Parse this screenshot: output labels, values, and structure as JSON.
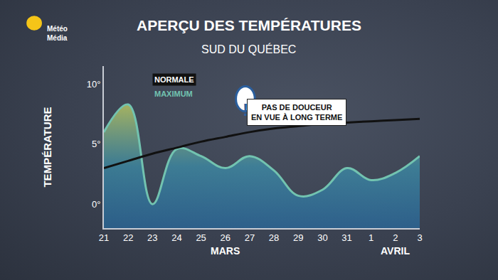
{
  "chart_data": {
    "type": "line",
    "title": "APERÇU DES TEMPÉRATURES",
    "subtitle": "SUD DU QUÉBEC",
    "logo": "Météo\nMédia",
    "y_label": "TEMPÉRATURE",
    "categories": [
      "21",
      "22",
      "23",
      "24",
      "25",
      "26",
      "27",
      "28",
      "29",
      "30",
      "31",
      "1",
      "2",
      "3"
    ],
    "series": [
      {
        "name": "NORMALE",
        "type": "line",
        "color": "#111111",
        "values": [
          3.0,
          3.6,
          4.2,
          4.7,
          5.2,
          5.6,
          6.0,
          6.3,
          6.5,
          6.7,
          6.8,
          6.9,
          7.0,
          7.1
        ]
      },
      {
        "name": "MAXIMUM",
        "type": "area",
        "color": "#72c3b0",
        "values": [
          6.0,
          8.3,
          0.0,
          4.6,
          4.0,
          3.0,
          4.0,
          2.8,
          0.7,
          1.2,
          3.0,
          2.0,
          2.6,
          4.0
        ]
      }
    ],
    "ylim": [
      -2,
      11.5
    ],
    "yticks": [
      {
        "value": 0,
        "label": "0°"
      },
      {
        "value": 5,
        "label": "5°"
      },
      {
        "value": 10,
        "label": "10°"
      }
    ],
    "grid": false,
    "legend": "top left",
    "callout": {
      "icon": "!",
      "text": "PAS DE DOUCEUR\nEN VUE À LONG TERME"
    },
    "month_labels": [
      {
        "text": "MARS",
        "x": "26"
      },
      {
        "text": "AVRIL",
        "x": "2"
      }
    ]
  }
}
